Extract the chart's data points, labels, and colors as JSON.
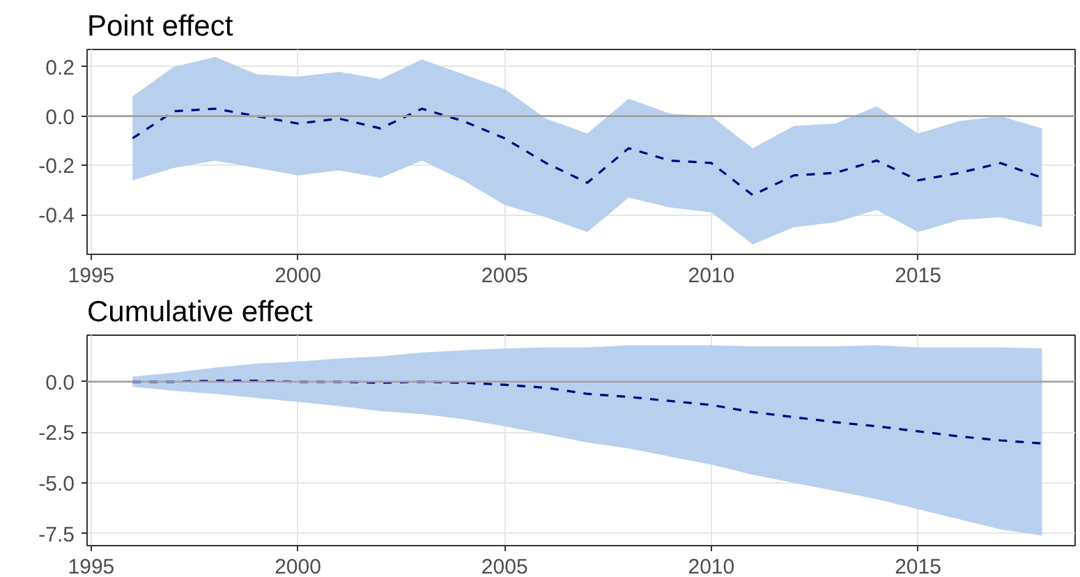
{
  "chart_data": [
    {
      "type": "line",
      "title": "Point effect",
      "x": [
        1996,
        1997,
        1998,
        1999,
        2000,
        2001,
        2002,
        2003,
        2004,
        2005,
        2006,
        2007,
        2008,
        2009,
        2010,
        2011,
        2012,
        2013,
        2014,
        2015,
        2016,
        2017,
        2018
      ],
      "series": [
        {
          "color": "#000080",
          "line_style": "dashed",
          "marker": "none",
          "values": [
            -0.09,
            0.02,
            0.03,
            0.0,
            -0.03,
            -0.01,
            -0.05,
            0.03,
            -0.02,
            -0.09,
            -0.19,
            -0.27,
            -0.13,
            -0.18,
            -0.19,
            -0.32,
            -0.24,
            -0.23,
            -0.18,
            -0.26,
            -0.23,
            -0.19,
            -0.25
          ],
          "upper": [
            0.08,
            0.2,
            0.24,
            0.17,
            0.16,
            0.18,
            0.15,
            0.23,
            0.17,
            0.11,
            -0.01,
            -0.07,
            0.07,
            0.01,
            0.0,
            -0.13,
            -0.04,
            -0.03,
            0.04,
            -0.07,
            -0.02,
            0.0,
            -0.05
          ],
          "lower": [
            -0.26,
            -0.21,
            -0.18,
            -0.21,
            -0.24,
            -0.22,
            -0.25,
            -0.18,
            -0.26,
            -0.36,
            -0.41,
            -0.47,
            -0.33,
            -0.37,
            -0.39,
            -0.52,
            -0.45,
            -0.43,
            -0.38,
            -0.47,
            -0.42,
            -0.41,
            -0.45
          ]
        }
      ],
      "xlim": [
        1994.9,
        2018.8
      ],
      "xticks": [
        1995,
        2000,
        2005,
        2010,
        2015
      ],
      "ylim": [
        -0.56,
        0.27
      ],
      "yticks": [
        {
          "value": 0.2,
          "label": "0.2"
        },
        {
          "value": 0.0,
          "label": "0.0"
        },
        {
          "value": -0.2,
          "label": "-0.2"
        },
        {
          "value": -0.4,
          "label": "-0.4"
        }
      ],
      "ref_lines": [
        {
          "axis": "y",
          "value": 0,
          "label": null,
          "color": "#a0a0a0"
        }
      ],
      "grid": true
    },
    {
      "type": "line",
      "title": "Cumulative effect",
      "x": [
        1996,
        1997,
        1998,
        1999,
        2000,
        2001,
        2002,
        2003,
        2004,
        2005,
        2006,
        2007,
        2008,
        2009,
        2010,
        2011,
        2012,
        2013,
        2014,
        2015,
        2016,
        2017,
        2018
      ],
      "series": [
        {
          "color": "#000080",
          "line_style": "dashed",
          "marker": "none",
          "values": [
            0.0,
            0.0,
            0.05,
            0.05,
            0.0,
            0.0,
            -0.05,
            0.0,
            -0.05,
            -0.15,
            -0.3,
            -0.6,
            -0.75,
            -0.95,
            -1.15,
            -1.5,
            -1.75,
            -2.0,
            -2.2,
            -2.45,
            -2.7,
            -2.9,
            -3.05
          ],
          "upper": [
            0.25,
            0.45,
            0.7,
            0.9,
            1.0,
            1.15,
            1.25,
            1.45,
            1.55,
            1.65,
            1.7,
            1.7,
            1.8,
            1.8,
            1.8,
            1.75,
            1.75,
            1.75,
            1.8,
            1.7,
            1.7,
            1.7,
            1.65
          ],
          "lower": [
            -0.25,
            -0.45,
            -0.6,
            -0.8,
            -1.0,
            -1.2,
            -1.45,
            -1.6,
            -1.85,
            -2.2,
            -2.6,
            -3.0,
            -3.3,
            -3.7,
            -4.1,
            -4.6,
            -5.0,
            -5.4,
            -5.8,
            -6.3,
            -6.8,
            -7.3,
            -7.6
          ]
        }
      ],
      "xlim": [
        1994.9,
        2018.8
      ],
      "xticks": [
        1995,
        2000,
        2005,
        2010,
        2015
      ],
      "ylim": [
        -8.1,
        2.3
      ],
      "yticks": [
        {
          "value": 0.0,
          "label": "0.0"
        },
        {
          "value": -2.5,
          "label": "-2.5"
        },
        {
          "value": -5.0,
          "label": "-5.0"
        },
        {
          "value": -7.5,
          "label": "-7.5"
        }
      ],
      "ref_lines": [
        {
          "axis": "y",
          "value": 0,
          "label": null,
          "color": "#a0a0a0"
        }
      ],
      "grid": true
    }
  ]
}
